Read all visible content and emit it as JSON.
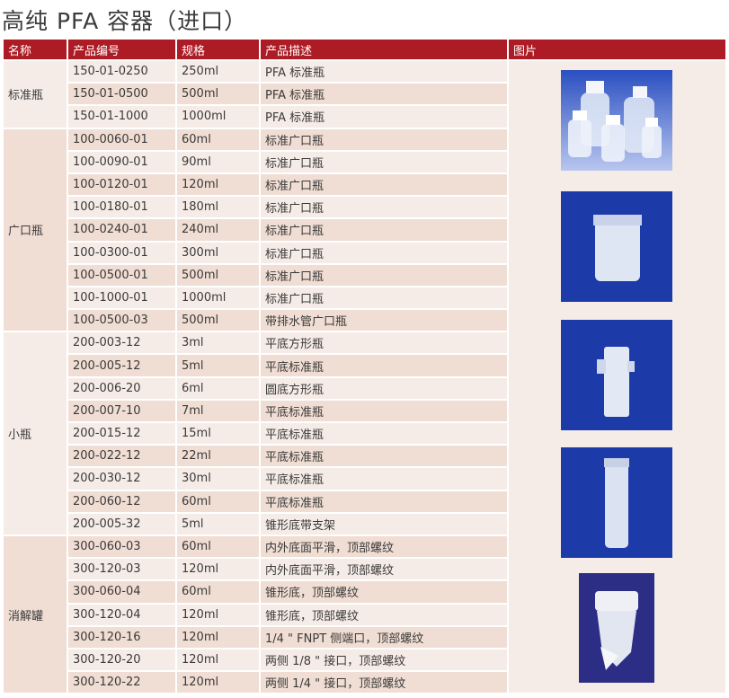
{
  "title": "高纯 PFA 容器（进口）",
  "headers": [
    "名称",
    "产品编号",
    "规格",
    "产品描述",
    "图片"
  ],
  "groups": [
    {
      "name": "标准瓶",
      "rows": [
        [
          "150-01-0250",
          "250ml",
          "PFA 标准瓶"
        ],
        [
          "150-01-0500",
          "500ml",
          "PFA 标准瓶"
        ],
        [
          "150-01-1000",
          "1000ml",
          "PFA 标准瓶"
        ]
      ]
    },
    {
      "name": "广口瓶",
      "rows": [
        [
          "100-0060-01",
          "60ml",
          "标准广口瓶"
        ],
        [
          "100-0090-01",
          "90ml",
          "标准广口瓶"
        ],
        [
          "100-0120-01",
          "120ml",
          "标准广口瓶"
        ],
        [
          "100-0180-01",
          "180ml",
          "标准广口瓶"
        ],
        [
          "100-0240-01",
          "240ml",
          "标准广口瓶"
        ],
        [
          "100-0300-01",
          "300ml",
          "标准广口瓶"
        ],
        [
          "100-0500-01",
          "500ml",
          "标准广口瓶"
        ],
        [
          "100-1000-01",
          "1000ml",
          "标准广口瓶"
        ],
        [
          "100-0500-03",
          "500ml",
          "带排水管广口瓶"
        ]
      ]
    },
    {
      "name": "小瓶",
      "rows": [
        [
          "200-003-12",
          "3ml",
          "平底方形瓶"
        ],
        [
          "200-005-12",
          "5ml",
          "平底标准瓶"
        ],
        [
          "200-006-20",
          "6ml",
          "圆底方形瓶"
        ],
        [
          "200-007-10",
          "7ml",
          "平底标准瓶"
        ],
        [
          "200-015-12",
          "15ml",
          "平底标准瓶"
        ],
        [
          "200-022-12",
          "22ml",
          "平底标准瓶"
        ],
        [
          "200-030-12",
          "30ml",
          "平底标准瓶"
        ],
        [
          "200-060-12",
          "60ml",
          "平底标准瓶"
        ],
        [
          "200-005-32",
          "5ml",
          "锥形底带支架"
        ]
      ]
    },
    {
      "name": "消解罐",
      "rows": [
        [
          "300-060-03",
          "60ml",
          "内外底面平滑，顶部螺纹"
        ],
        [
          "300-120-03",
          "120ml",
          "内外底面平滑，顶部螺纹"
        ],
        [
          "300-060-04",
          "60ml",
          "锥形底，顶部螺纹"
        ],
        [
          "300-120-04",
          "120ml",
          "锥形底，顶部螺纹"
        ],
        [
          "300-120-16",
          "120ml",
          "1/4 \" FNPT 侧端口，顶部螺纹"
        ],
        [
          "300-120-20",
          "120ml",
          "两侧 1/8 \" 接口，顶部螺纹"
        ],
        [
          "300-120-22",
          "120ml",
          "两侧 1/4 \" 接口，顶部螺纹"
        ]
      ]
    }
  ],
  "colors": {
    "header": "#ad1c25",
    "row_light": "#f6ece7",
    "row_dark": "#f0ddd3",
    "photo_bg": "#1c3aa8"
  },
  "images": [
    "bottles-photo",
    "wide-mouth-jar-photo",
    "square-vial-photo",
    "tall-vial-photo",
    "digestion-vessel-photo"
  ]
}
